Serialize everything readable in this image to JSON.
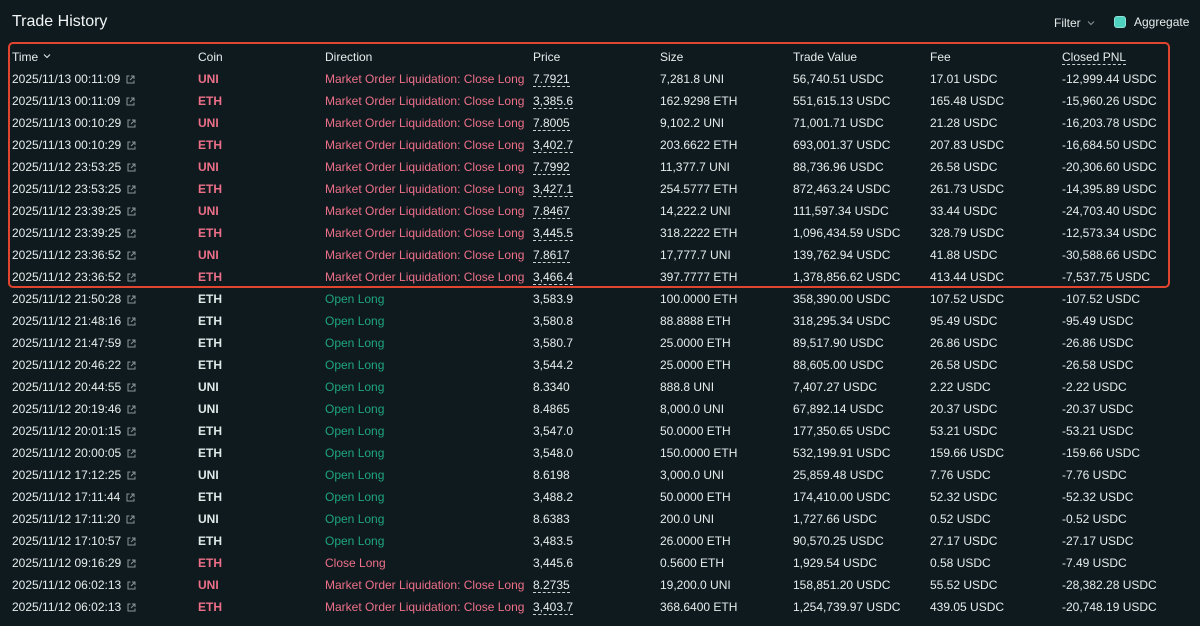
{
  "header": {
    "title": "Trade History",
    "filter_label": "Filter",
    "aggregate_label": "Aggregate"
  },
  "columns": {
    "time": "Time",
    "coin": "Coin",
    "direction": "Direction",
    "price": "Price",
    "size": "Size",
    "trade_value": "Trade Value",
    "fee": "Fee",
    "closed_pnl": "Closed PNL"
  },
  "colors": {
    "background": "#0f1a1f",
    "red_text": "#ed7088",
    "green_text": "#1fa67d",
    "highlight_border": "#e0452f",
    "checkbox": "#50d2c1"
  },
  "rows": [
    {
      "time": "2025/11/13 00:11:09",
      "coin": "UNI",
      "direction": "Market Order Liquidation: Close Long",
      "price": "7.7921",
      "size": "7,281.8 UNI",
      "value": "56,740.51 USDC",
      "fee": "17.01 USDC",
      "pnl": "-12,999.44 USDC"
    },
    {
      "time": "2025/11/13 00:11:09",
      "coin": "ETH",
      "direction": "Market Order Liquidation: Close Long",
      "price": "3,385.6",
      "size": "162.9298 ETH",
      "value": "551,615.13 USDC",
      "fee": "165.48 USDC",
      "pnl": "-15,960.26 USDC"
    },
    {
      "time": "2025/11/13 00:10:29",
      "coin": "UNI",
      "direction": "Market Order Liquidation: Close Long",
      "price": "7.8005",
      "size": "9,102.2 UNI",
      "value": "71,001.71 USDC",
      "fee": "21.28 USDC",
      "pnl": "-16,203.78 USDC"
    },
    {
      "time": "2025/11/13 00:10:29",
      "coin": "ETH",
      "direction": "Market Order Liquidation: Close Long",
      "price": "3,402.7",
      "size": "203.6622 ETH",
      "value": "693,001.37 USDC",
      "fee": "207.83 USDC",
      "pnl": "-16,684.50 USDC"
    },
    {
      "time": "2025/11/12 23:53:25",
      "coin": "UNI",
      "direction": "Market Order Liquidation: Close Long",
      "price": "7.7992",
      "size": "11,377.7 UNI",
      "value": "88,736.96 USDC",
      "fee": "26.58 USDC",
      "pnl": "-20,306.60 USDC"
    },
    {
      "time": "2025/11/12 23:53:25",
      "coin": "ETH",
      "direction": "Market Order Liquidation: Close Long",
      "price": "3,427.1",
      "size": "254.5777 ETH",
      "value": "872,463.24 USDC",
      "fee": "261.73 USDC",
      "pnl": "-14,395.89 USDC"
    },
    {
      "time": "2025/11/12 23:39:25",
      "coin": "UNI",
      "direction": "Market Order Liquidation: Close Long",
      "price": "7.8467",
      "size": "14,222.2 UNI",
      "value": "111,597.34 USDC",
      "fee": "33.44 USDC",
      "pnl": "-24,703.40 USDC"
    },
    {
      "time": "2025/11/12 23:39:25",
      "coin": "ETH",
      "direction": "Market Order Liquidation: Close Long",
      "price": "3,445.5",
      "size": "318.2222 ETH",
      "value": "1,096,434.59 USDC",
      "fee": "328.79 USDC",
      "pnl": "-12,573.34 USDC"
    },
    {
      "time": "2025/11/12 23:36:52",
      "coin": "UNI",
      "direction": "Market Order Liquidation: Close Long",
      "price": "7.8617",
      "size": "17,777.7 UNI",
      "value": "139,762.94 USDC",
      "fee": "41.88 USDC",
      "pnl": "-30,588.66 USDC"
    },
    {
      "time": "2025/11/12 23:36:52",
      "coin": "ETH",
      "direction": "Market Order Liquidation: Close Long",
      "price": "3,466.4",
      "size": "397.7777 ETH",
      "value": "1,378,856.62 USDC",
      "fee": "413.44 USDC",
      "pnl": "-7,537.75 USDC"
    },
    {
      "time": "2025/11/12 21:50:28",
      "coin": "ETH",
      "direction": "Open Long",
      "price": "3,583.9",
      "size": "100.0000 ETH",
      "value": "358,390.00 USDC",
      "fee": "107.52 USDC",
      "pnl": "-107.52 USDC"
    },
    {
      "time": "2025/11/12 21:48:16",
      "coin": "ETH",
      "direction": "Open Long",
      "price": "3,580.8",
      "size": "88.8888 ETH",
      "value": "318,295.34 USDC",
      "fee": "95.49 USDC",
      "pnl": "-95.49 USDC"
    },
    {
      "time": "2025/11/12 21:47:59",
      "coin": "ETH",
      "direction": "Open Long",
      "price": "3,580.7",
      "size": "25.0000 ETH",
      "value": "89,517.90 USDC",
      "fee": "26.86 USDC",
      "pnl": "-26.86 USDC"
    },
    {
      "time": "2025/11/12 20:46:22",
      "coin": "ETH",
      "direction": "Open Long",
      "price": "3,544.2",
      "size": "25.0000 ETH",
      "value": "88,605.00 USDC",
      "fee": "26.58 USDC",
      "pnl": "-26.58 USDC"
    },
    {
      "time": "2025/11/12 20:44:55",
      "coin": "UNI",
      "direction": "Open Long",
      "price": "8.3340",
      "size": "888.8 UNI",
      "value": "7,407.27 USDC",
      "fee": "2.22 USDC",
      "pnl": "-2.22 USDC"
    },
    {
      "time": "2025/11/12 20:19:46",
      "coin": "UNI",
      "direction": "Open Long",
      "price": "8.4865",
      "size": "8,000.0 UNI",
      "value": "67,892.14 USDC",
      "fee": "20.37 USDC",
      "pnl": "-20.37 USDC"
    },
    {
      "time": "2025/11/12 20:01:15",
      "coin": "ETH",
      "direction": "Open Long",
      "price": "3,547.0",
      "size": "50.0000 ETH",
      "value": "177,350.65 USDC",
      "fee": "53.21 USDC",
      "pnl": "-53.21 USDC"
    },
    {
      "time": "2025/11/12 20:00:05",
      "coin": "ETH",
      "direction": "Open Long",
      "price": "3,548.0",
      "size": "150.0000 ETH",
      "value": "532,199.91 USDC",
      "fee": "159.66 USDC",
      "pnl": "-159.66 USDC"
    },
    {
      "time": "2025/11/12 17:12:25",
      "coin": "UNI",
      "direction": "Open Long",
      "price": "8.6198",
      "size": "3,000.0 UNI",
      "value": "25,859.48 USDC",
      "fee": "7.76 USDC",
      "pnl": "-7.76 USDC"
    },
    {
      "time": "2025/11/12 17:11:44",
      "coin": "ETH",
      "direction": "Open Long",
      "price": "3,488.2",
      "size": "50.0000 ETH",
      "value": "174,410.00 USDC",
      "fee": "52.32 USDC",
      "pnl": "-52.32 USDC"
    },
    {
      "time": "2025/11/12 17:11:20",
      "coin": "UNI",
      "direction": "Open Long",
      "price": "8.6383",
      "size": "200.0 UNI",
      "value": "1,727.66 USDC",
      "fee": "0.52 USDC",
      "pnl": "-0.52 USDC"
    },
    {
      "time": "2025/11/12 17:10:57",
      "coin": "ETH",
      "direction": "Open Long",
      "price": "3,483.5",
      "size": "26.0000 ETH",
      "value": "90,570.25 USDC",
      "fee": "27.17 USDC",
      "pnl": "-27.17 USDC"
    },
    {
      "time": "2025/11/12 09:16:29",
      "coin": "ETH",
      "direction": "Close Long",
      "price": "3,445.6",
      "size": "0.5600 ETH",
      "value": "1,929.54 USDC",
      "fee": "0.58 USDC",
      "pnl": "-7.49 USDC"
    },
    {
      "time": "2025/11/12 06:02:13",
      "coin": "UNI",
      "direction": "Market Order Liquidation: Close Long",
      "price": "8.2735",
      "size": "19,200.0 UNI",
      "value": "158,851.20 USDC",
      "fee": "55.52 USDC",
      "pnl": "-28,382.28 USDC"
    },
    {
      "time": "2025/11/12 06:02:13",
      "coin": "ETH",
      "direction": "Market Order Liquidation: Close Long",
      "price": "3,403.7",
      "size": "368.6400 ETH",
      "value": "1,254,739.97 USDC",
      "fee": "439.05 USDC",
      "pnl": "-20,748.19 USDC"
    }
  ]
}
